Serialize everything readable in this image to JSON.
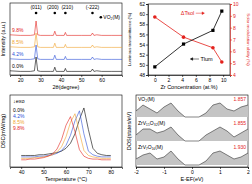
{
  "chart_data": [
    {
      "type": "line",
      "x_label": "2θ(degree)",
      "y_label": "Intensity (a.u.)",
      "xlim": [
        15,
        70
      ],
      "xticks": [
        20,
        30,
        40,
        50,
        60
      ],
      "ylim": [
        0,
        120
      ],
      "tick_labels": "x",
      "phase_label": "VO₂(M)",
      "peaks": [
        {
          "label": "(011)",
          "x": 27.8
        },
        {
          "label": "(200)",
          "x": 37
        },
        {
          "label": "(210)",
          "x": 42.2
        },
        {
          "label": "(-222)",
          "x": 55.5
        }
      ],
      "x": [
        15,
        20,
        25,
        27,
        27.8,
        28.6,
        30,
        35,
        36.3,
        37,
        37.7,
        40,
        41.6,
        42.2,
        42.8,
        45,
        50,
        54.8,
        55.5,
        56.2,
        57.6,
        60,
        65,
        70
      ],
      "series": [
        {
          "name": "9.8%",
          "color": "#e3211c",
          "values": [
            67,
            66,
            66,
            67,
            90,
            67,
            66,
            66,
            66,
            73,
            66,
            66,
            66,
            71,
            66,
            66,
            66,
            66,
            70,
            66,
            67,
            66,
            66,
            66
          ]
        },
        {
          "name": "8.5%",
          "color": "#f0a22e",
          "values": [
            47,
            46,
            46,
            47,
            70,
            47,
            46,
            46,
            46,
            53,
            46,
            46,
            46,
            51,
            46,
            46,
            46,
            46,
            50,
            46,
            47,
            46,
            46,
            46
          ]
        },
        {
          "name": "4.2%",
          "color": "#2c4fd6",
          "values": [
            27,
            26,
            26,
            27,
            50,
            27,
            26,
            26,
            26,
            33,
            26,
            26,
            26,
            31,
            26,
            26,
            26,
            26,
            30,
            26,
            27,
            26,
            26,
            26
          ]
        },
        {
          "name": "0.0%",
          "color": "#000000",
          "values": [
            7,
            6,
            6,
            7,
            30,
            7,
            6,
            6,
            6,
            13,
            6,
            6,
            6,
            11,
            6,
            6,
            6,
            6,
            10,
            6,
            7,
            6,
            6,
            6
          ]
        }
      ]
    },
    {
      "type": "line",
      "x_label": "Zr Concentration (at.%)",
      "y_label": "Luminous transmittance (%)",
      "y2_label": "Solar modulation ability (%)",
      "xlim": [
        -1,
        11
      ],
      "xticks": [
        0,
        2,
        4,
        6,
        8,
        10
      ],
      "ylim": [
        48,
        62
      ],
      "yticks": [
        48,
        50,
        52,
        54,
        56,
        58,
        60,
        62
      ],
      "y2lim": [
        4,
        10
      ],
      "y2ticks": [
        4,
        5,
        6,
        7,
        8,
        9,
        10
      ],
      "x": [
        0,
        4.2,
        8.5,
        9.8
      ],
      "series": [
        {
          "name": "ΔTsol",
          "color": "#e3211c",
          "axis": "y2",
          "marker": "circle",
          "values": [
            8.9,
            7.2,
            6.3,
            5.1
          ]
        },
        {
          "name": "Tlum",
          "color": "#000000",
          "marker": "square",
          "values": [
            49.6,
            54.1,
            56.8,
            60.6
          ]
        }
      ]
    },
    {
      "type": "line",
      "x_label": "Temperature (°C)",
      "y_label": "DSC(mW/mg)",
      "xlim": [
        35,
        85
      ],
      "xticks": [
        40,
        50,
        60,
        70,
        80
      ],
      "ylim": [
        0,
        10
      ],
      "tick_labels": "x",
      "annotations": [
        {
          "text": "↓exo"
        }
      ],
      "x": [
        40,
        42,
        44,
        46,
        48,
        50,
        52,
        54,
        56,
        58,
        60,
        62,
        64,
        66,
        68,
        70,
        72,
        74,
        76,
        78,
        80
      ],
      "series": [
        {
          "name": "0.0%",
          "color": "#000000",
          "values": [
            1.6,
            1.6,
            1.6,
            1.6,
            1.7,
            1.7,
            1.8,
            1.9,
            2.0,
            2.2,
            2.6,
            3.3,
            4.6,
            6.6,
            8.2,
            5.2,
            2.6,
            1.9,
            1.7,
            1.6,
            1.6
          ]
        },
        {
          "name": "4.2%",
          "color": "#2c4fd6",
          "values": [
            1.4,
            1.4,
            1.4,
            1.4,
            1.5,
            1.5,
            1.6,
            1.7,
            1.9,
            2.3,
            3.0,
            4.4,
            6.4,
            7.8,
            4.6,
            2.2,
            1.7,
            1.5,
            1.4,
            1.4,
            1.4
          ]
        },
        {
          "name": "8.5%",
          "color": "#f0a22e",
          "values": [
            1.2,
            1.2,
            1.2,
            1.3,
            1.3,
            1.4,
            1.5,
            1.7,
            2.1,
            2.8,
            4.2,
            6.2,
            7.4,
            4.8,
            2.3,
            1.6,
            1.4,
            1.3,
            1.2,
            1.2,
            1.2
          ]
        },
        {
          "name": "9.8%",
          "color": "#e3211c",
          "values": [
            1.0,
            1.0,
            1.1,
            1.1,
            1.2,
            1.3,
            1.5,
            1.8,
            2.5,
            3.8,
            5.8,
            7.0,
            4.9,
            2.4,
            1.5,
            1.2,
            1.1,
            1.1,
            1.0,
            1.0,
            1.0
          ]
        }
      ]
    },
    {
      "type": "area",
      "x_label": "E-EF(eV)",
      "y_label": "DOS(states/eV)",
      "xlim": [
        -2,
        2
      ],
      "xticks": [
        -2,
        -1,
        0,
        1,
        2
      ],
      "ylim": [
        0,
        36
      ],
      "tick_labels": "x",
      "x": [
        -2,
        -1.75,
        -1.5,
        -1.25,
        -1,
        -0.75,
        -0.5,
        -0.25,
        0,
        0.25,
        0.5,
        0.75,
        1,
        1.25,
        1.5,
        1.75,
        2
      ],
      "series": [
        {
          "name": "VO₂(M)",
          "color": "#333333",
          "gap_label": "1.857",
          "values": [
            28,
            31,
            29,
            27,
            30,
            32,
            28,
            25,
            25,
            25,
            27,
            31,
            32,
            29,
            28,
            30,
            31
          ]
        },
        {
          "name": "ZrV₁₅O₃₂(M)",
          "color": "#333333",
          "gap_label": "1.855",
          "values": [
            16,
            19,
            19,
            17,
            18,
            20,
            16,
            13,
            13,
            13,
            16,
            18,
            20,
            18,
            15,
            17,
            19
          ]
        },
        {
          "name": "ZrV₇O₁₆(M)",
          "color": "#333333",
          "gap_label": "1.930",
          "values": [
            4,
            6,
            7,
            4,
            5,
            8,
            4,
            1,
            1,
            1,
            3,
            7,
            8,
            6,
            4,
            5,
            7
          ]
        }
      ]
    }
  ]
}
